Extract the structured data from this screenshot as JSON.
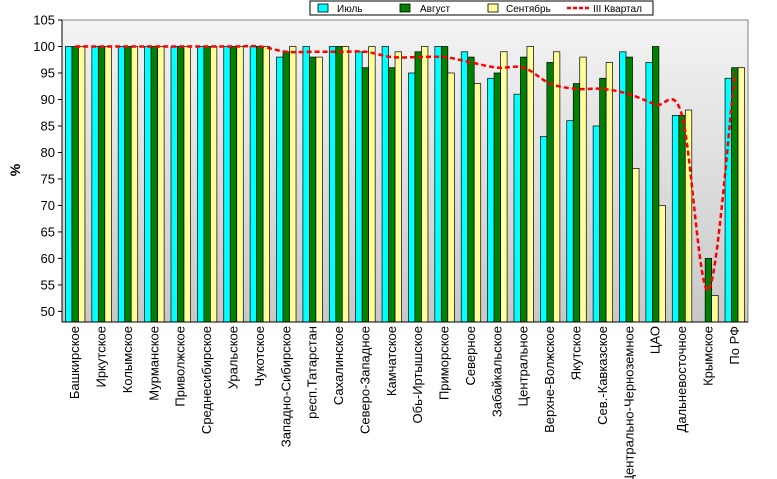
{
  "chart_data": {
    "type": "bar",
    "ylabel": "%",
    "ylim": [
      48,
      105
    ],
    "yticks": [
      50,
      55,
      60,
      65,
      70,
      75,
      80,
      85,
      90,
      95,
      100,
      105
    ],
    "grid": false,
    "legend_position": "top-right",
    "categories": [
      "Башкирское",
      "Иркутское",
      "Колымское",
      "Мурманское",
      "Приволжское",
      "Среднесибирское",
      "Уральское",
      "Чукотское",
      "Западно-Сибирское",
      "респ.Татарстан",
      "Сахалинское",
      "Северо-Западное",
      "Камчатское",
      "Обь-Иртышское",
      "Приморское",
      "Северное",
      "Забайкальское",
      "Центральное",
      "Верхне-Волжское",
      "Якутское",
      "Сев.-Кавказское",
      "Центрально-Черноземное",
      "ЦАО",
      "Дальневосточное",
      "Крымское",
      "По РФ"
    ],
    "series": [
      {
        "name": "Июль",
        "kind": "bar",
        "color": "#00ffff",
        "values": [
          100,
          100,
          100,
          100,
          100,
          100,
          100,
          100,
          98,
          100,
          100,
          99,
          100,
          95,
          100,
          99,
          94,
          91,
          83,
          86,
          85,
          99,
          97,
          87,
          48,
          94
        ]
      },
      {
        "name": "Август",
        "kind": "bar",
        "color": "#008000",
        "values": [
          100,
          100,
          100,
          100,
          100,
          100,
          100,
          100,
          99,
          98,
          100,
          96,
          96,
          99,
          100,
          98,
          95,
          98,
          97,
          93,
          94,
          98,
          100,
          87,
          60,
          96
        ]
      },
      {
        "name": "Сентябрь",
        "kind": "bar",
        "color": "#ffff99",
        "values": [
          100,
          100,
          100,
          100,
          100,
          100,
          100,
          100,
          100,
          98,
          100,
          100,
          99,
          100,
          95,
          93,
          99,
          100,
          99,
          98,
          97,
          77,
          70,
          88,
          53,
          96
        ]
      },
      {
        "name": "III Квартал",
        "kind": "line",
        "color": "#ff0000",
        "values": [
          100,
          100,
          100,
          100,
          100,
          100,
          100,
          100,
          99,
          99,
          99,
          99,
          98,
          98,
          98,
          97,
          96,
          96,
          93,
          92,
          92,
          91,
          89,
          87,
          54,
          95
        ]
      }
    ]
  }
}
